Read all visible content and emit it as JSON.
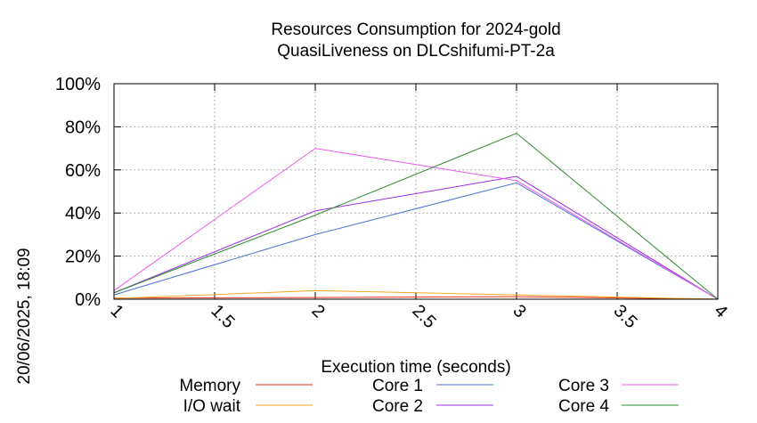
{
  "chart_data": {
    "type": "line",
    "title": "Resources Consumption for 2024-gold",
    "subtitle": "QuasiLiveness on DLCshifumi-PT-2a",
    "xlabel": "Execution time (seconds)",
    "ylabel": "",
    "xlim": [
      1,
      4
    ],
    "ylim": [
      0,
      100
    ],
    "xticks": [
      "1",
      "1.5",
      "2",
      "2.5",
      "3",
      "3.5",
      "4"
    ],
    "yticks": [
      "0%",
      "20%",
      "40%",
      "60%",
      "80%",
      "100%"
    ],
    "grid": true,
    "legend": "bottom",
    "timestamp": "20/06/2025, 18:09",
    "series": [
      {
        "name": "Memory",
        "color": "#e8321e",
        "x": [
          1,
          2,
          3,
          4
        ],
        "values": [
          0.5,
          0.8,
          1.2,
          0
        ]
      },
      {
        "name": "I/O wait",
        "color": "#f5a623",
        "x": [
          1,
          2,
          3,
          4
        ],
        "values": [
          0.3,
          4,
          2,
          0
        ]
      },
      {
        "name": "Core 1",
        "color": "#4a74d6",
        "x": [
          1,
          2,
          3,
          4
        ],
        "values": [
          2,
          30,
          54,
          0
        ]
      },
      {
        "name": "Core 2",
        "color": "#9b30e8",
        "x": [
          1,
          2,
          3,
          4
        ],
        "values": [
          3,
          41,
          57,
          0
        ]
      },
      {
        "name": "Core 3",
        "color": "#ee5cee",
        "x": [
          1,
          2,
          3,
          4
        ],
        "values": [
          4,
          70,
          55,
          0
        ]
      },
      {
        "name": "Core 4",
        "color": "#2e8b2e",
        "x": [
          1,
          2,
          3,
          4
        ],
        "values": [
          3,
          39,
          77,
          0
        ]
      }
    ]
  }
}
